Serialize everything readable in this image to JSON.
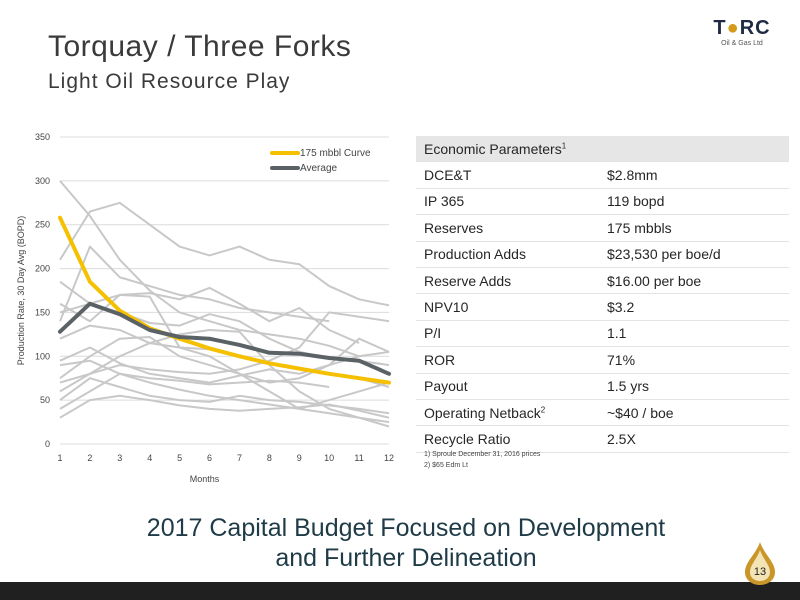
{
  "header": {
    "title": "Torquay / Three Forks",
    "subtitle": "Light Oil Resource Play"
  },
  "logo": {
    "name": "TORC",
    "sub": "Oil & Gas Ltd",
    "brand_color": "#1f2a44",
    "accent_color": "#d49a1a"
  },
  "chart_data": {
    "type": "line",
    "xlabel": "Months",
    "ylabel": "Production Rate, 30 Day Avg (BOPD)",
    "x": [
      1,
      2,
      3,
      4,
      5,
      6,
      7,
      8,
      9,
      10,
      11,
      12
    ],
    "xlim": [
      1,
      12
    ],
    "ylim": [
      0,
      350
    ],
    "y_ticks": [
      0,
      50,
      100,
      150,
      200,
      250,
      300,
      350
    ],
    "grid": true,
    "legend_position": "top-right",
    "series": [
      {
        "name": "175 mbbl Curve",
        "color": "#f5c000",
        "width": 4,
        "values": [
          258,
          185,
          152,
          132,
          120,
          109,
          100,
          92,
          86,
          80,
          75,
          70
        ]
      },
      {
        "name": "Average",
        "color": "#5b6266",
        "width": 4,
        "values": [
          128,
          160,
          148,
          130,
          122,
          120,
          113,
          104,
          103,
          98,
          95,
          80
        ]
      }
    ],
    "background_wells": {
      "color": "#c8c8c8",
      "values": [
        [
          300,
          260,
          210,
          175,
          150,
          140,
          130,
          125,
          120,
          112,
          100
        ],
        [
          210,
          265,
          275,
          250,
          225,
          215,
          225,
          210,
          205,
          180,
          165,
          158
        ],
        [
          185,
          160,
          150,
          138,
          135,
          148,
          140,
          120,
          105,
          98,
          95,
          90
        ],
        [
          160,
          140,
          170,
          172,
          165,
          178,
          160,
          140,
          155,
          130,
          115
        ],
        [
          150,
          160,
          170,
          168,
          110,
          100,
          80,
          60,
          40,
          50,
          60,
          70
        ],
        [
          140,
          225,
          190,
          180,
          170,
          165,
          155,
          150,
          145,
          140
        ],
        [
          120,
          135,
          130,
          115,
          110,
          108,
          100,
          92,
          85,
          80,
          75,
          65
        ],
        [
          95,
          110,
          92,
          80,
          75,
          70,
          78,
          85,
          80,
          90,
          100,
          105
        ],
        [
          90,
          95,
          80,
          70,
          62,
          55,
          50,
          45,
          40,
          35,
          30,
          25
        ],
        [
          75,
          100,
          120,
          122,
          100,
          90,
          80,
          70,
          75,
          90,
          120,
          105
        ],
        [
          60,
          80,
          90,
          85,
          82,
          80,
          85,
          95,
          110,
          150,
          145,
          140
        ],
        [
          50,
          75,
          65,
          55,
          50,
          48,
          55,
          50,
          48,
          44,
          40,
          35
        ],
        [
          40,
          60,
          80,
          75,
          72,
          68,
          70,
          72,
          70,
          65
        ],
        [
          30,
          50,
          55,
          50,
          44,
          40,
          38,
          40,
          42,
          45,
          38,
          30
        ],
        [
          70,
          80,
          100,
          115,
          125,
          130,
          128,
          90,
          60,
          40,
          30,
          20
        ]
      ]
    }
  },
  "table": {
    "header": "Economic Parameters",
    "header_note": "1",
    "rows": [
      {
        "label": "DCE&T",
        "note": "",
        "value": "$2.8mm"
      },
      {
        "label": "IP 365",
        "note": "",
        "value": "119 bopd"
      },
      {
        "label": "Reserves",
        "note": "",
        "value": "175 mbbls"
      },
      {
        "label": "Production Adds",
        "note": "",
        "value": "$23,530 per boe/d"
      },
      {
        "label": "Reserve Adds",
        "note": "",
        "value": "$16.00 per boe"
      },
      {
        "label": "NPV10",
        "note": "",
        "value": "$3.2"
      },
      {
        "label": "P/I",
        "note": "",
        "value": "1.1"
      },
      {
        "label": "ROR",
        "note": "",
        "value": "71%"
      },
      {
        "label": "Payout",
        "note": "",
        "value": "1.5 yrs"
      },
      {
        "label": "Operating Netback",
        "note": "2",
        "value": "~$40 / boe"
      },
      {
        "label": "Recycle Ratio",
        "note": "",
        "value": "2.5X"
      }
    ]
  },
  "footnotes": [
    "1)   Sproule December 31, 2016 prices",
    "2)   $65 Edm Lt"
  ],
  "footer": {
    "line1": "2017 Capital Budget Focused on Development",
    "line2": "and Further Delineation",
    "page_number": "13"
  }
}
